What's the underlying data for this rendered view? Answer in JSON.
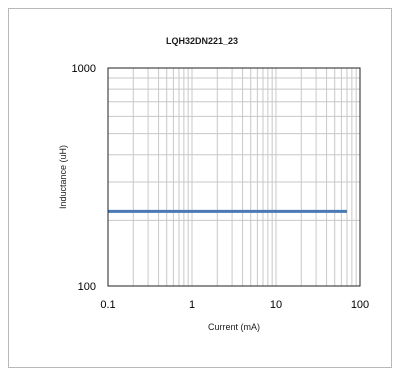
{
  "chart_data": {
    "type": "line",
    "title": "LQH32DN221_23",
    "xlabel": "Current (mA)",
    "ylabel": "Inductance (uH)",
    "x_scale": "log",
    "y_scale": "log",
    "xlim": [
      0.1,
      100
    ],
    "ylim": [
      100,
      1000
    ],
    "x_ticks": [
      "0.1",
      "1",
      "10",
      "100"
    ],
    "y_ticks": [
      "100",
      "1000"
    ],
    "grid": true,
    "series": [
      {
        "x": [
          0.1,
          70
        ],
        "y": [
          220,
          220
        ],
        "color": "#4a7ab5"
      }
    ]
  },
  "colors": {
    "frame_border": "#b8b8b8",
    "grid": "#c8c8c8",
    "axis": "#222222",
    "series": "#4a7ab5"
  }
}
